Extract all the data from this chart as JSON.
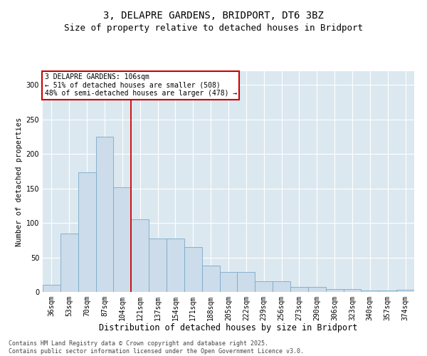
{
  "title1": "3, DELAPRE GARDENS, BRIDPORT, DT6 3BZ",
  "title2": "Size of property relative to detached houses in Bridport",
  "xlabel": "Distribution of detached houses by size in Bridport",
  "ylabel": "Number of detached properties",
  "categories": [
    "36sqm",
    "53sqm",
    "70sqm",
    "87sqm",
    "104sqm",
    "121sqm",
    "137sqm",
    "154sqm",
    "171sqm",
    "188sqm",
    "205sqm",
    "222sqm",
    "239sqm",
    "256sqm",
    "273sqm",
    "290sqm",
    "306sqm",
    "323sqm",
    "340sqm",
    "357sqm",
    "374sqm"
  ],
  "values": [
    10,
    85,
    173,
    225,
    152,
    105,
    77,
    77,
    65,
    38,
    29,
    29,
    15,
    15,
    7,
    7,
    4,
    4,
    2,
    2,
    3
  ],
  "bar_color": "#ccdcea",
  "bar_edge_color": "#7aaac8",
  "vline_x": 4.5,
  "annotation_line1": "3 DELAPRE GARDENS: 106sqm",
  "annotation_line2": "← 51% of detached houses are smaller (508)",
  "annotation_line3": "48% of semi-detached houses are larger (478) →",
  "annotation_box_color": "#ffffff",
  "annotation_box_edge": "#cc0000",
  "vline_color": "#cc0000",
  "ylim": [
    0,
    320
  ],
  "yticks": [
    0,
    50,
    100,
    150,
    200,
    250,
    300
  ],
  "background_color": "#dce8f0",
  "footer1": "Contains HM Land Registry data © Crown copyright and database right 2025.",
  "footer2": "Contains public sector information licensed under the Open Government Licence v3.0.",
  "title1_fontsize": 10,
  "title2_fontsize": 9,
  "xlabel_fontsize": 8.5,
  "ylabel_fontsize": 7.5,
  "tick_fontsize": 7,
  "footer_fontsize": 6,
  "annot_fontsize": 7
}
